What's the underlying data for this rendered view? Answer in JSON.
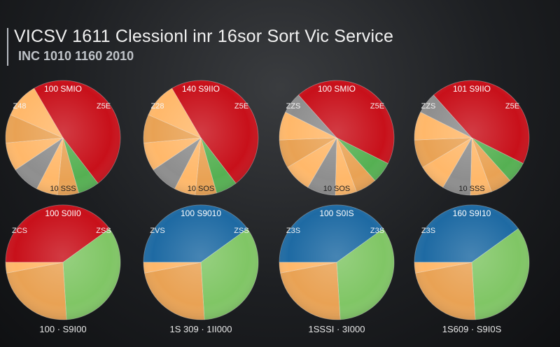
{
  "header": {
    "title": "VICSV 1611 Clessionl inr 16sor Sort Vic Service",
    "subtitle": "INC 1010 1160 2010"
  },
  "colors": {
    "red": "#c8101a",
    "green": "#3f9a3c",
    "orange": "#e9a254",
    "grey": "#8e8e8e",
    "blue": "#1e6aa3",
    "lightgreen": "#6ab04f"
  },
  "chart_data": [
    {
      "type": "pie",
      "top_label": "100 SMIO",
      "left_label": "Z48",
      "right_label": "Z5E",
      "bottom_label": "10 SSS",
      "slices": [
        {
          "value": 48,
          "color": "#c8101a"
        },
        {
          "value": 6,
          "color": "#3f9a3c"
        },
        {
          "value": 6,
          "color": "#e9a254"
        },
        {
          "value": 6,
          "color": "#e9a254"
        },
        {
          "value": 8,
          "color": "#8e8e8e"
        },
        {
          "value": 8,
          "color": "#e9a254"
        },
        {
          "value": 8,
          "color": "#e9a254"
        },
        {
          "value": 10,
          "color": "#e9a254"
        }
      ]
    },
    {
      "type": "pie",
      "top_label": "140 S9IIO",
      "left_label": "Z28",
      "right_label": "Z5E",
      "bottom_label": "10 SOS",
      "slices": [
        {
          "value": 48,
          "color": "#c8101a"
        },
        {
          "value": 6,
          "color": "#3f9a3c"
        },
        {
          "value": 6,
          "color": "#e9a254"
        },
        {
          "value": 6,
          "color": "#e9a254"
        },
        {
          "value": 8,
          "color": "#8e8e8e"
        },
        {
          "value": 8,
          "color": "#e9a254"
        },
        {
          "value": 8,
          "color": "#e9a254"
        },
        {
          "value": 10,
          "color": "#e9a254"
        }
      ]
    },
    {
      "type": "pie",
      "top_label": "100 SMIO",
      "left_label": "ZZS",
      "right_label": "Z5E",
      "bottom_label": "10 SOS",
      "slices": [
        {
          "value": 44,
          "color": "#c8101a"
        },
        {
          "value": 6,
          "color": "#3f9a3c"
        },
        {
          "value": 6,
          "color": "#e9a254"
        },
        {
          "value": 6,
          "color": "#e9a254"
        },
        {
          "value": 8,
          "color": "#8e8e8e"
        },
        {
          "value": 8,
          "color": "#e9a254"
        },
        {
          "value": 8,
          "color": "#e9a254"
        },
        {
          "value": 8,
          "color": "#e9a254"
        },
        {
          "value": 6,
          "color": "#8e8e8e"
        }
      ]
    },
    {
      "type": "pie",
      "top_label": "101 S9IIO",
      "left_label": "ZZS",
      "right_label": "Z5E",
      "bottom_label": "10 SSS",
      "slices": [
        {
          "value": 44,
          "color": "#c8101a"
        },
        {
          "value": 6,
          "color": "#3f9a3c"
        },
        {
          "value": 6,
          "color": "#e9a254"
        },
        {
          "value": 6,
          "color": "#e9a254"
        },
        {
          "value": 8,
          "color": "#8e8e8e"
        },
        {
          "value": 8,
          "color": "#e9a254"
        },
        {
          "value": 8,
          "color": "#e9a254"
        },
        {
          "value": 8,
          "color": "#e9a254"
        },
        {
          "value": 6,
          "color": "#8e8e8e"
        }
      ]
    },
    {
      "type": "pie",
      "top_label": "100 S0II0",
      "left_label": "ZCS",
      "right_label": "ZSS",
      "bottom_label": "100 · S9I00",
      "slices": [
        {
          "value": 40,
          "color": "#c8101a"
        },
        {
          "value": 34,
          "color": "#6ab04f"
        },
        {
          "value": 23,
          "color": "#e9a254"
        },
        {
          "value": 3,
          "color": "#e9a254"
        }
      ]
    },
    {
      "type": "pie",
      "top_label": "100 S9010",
      "left_label": "ZVS",
      "right_label": "ZSS",
      "bottom_label": "1S 309 · 1II000",
      "slices": [
        {
          "value": 40,
          "color": "#1e6aa3"
        },
        {
          "value": 34,
          "color": "#6ab04f"
        },
        {
          "value": 23,
          "color": "#e9a254"
        },
        {
          "value": 3,
          "color": "#e9a254"
        }
      ]
    },
    {
      "type": "pie",
      "top_label": "100 S0IS",
      "left_label": "Z3S",
      "right_label": "Z3S",
      "bottom_label": "1SSSI · 3I000",
      "slices": [
        {
          "value": 40,
          "color": "#1e6aa3"
        },
        {
          "value": 34,
          "color": "#6ab04f"
        },
        {
          "value": 23,
          "color": "#e9a254"
        },
        {
          "value": 3,
          "color": "#e9a254"
        }
      ]
    },
    {
      "type": "pie",
      "top_label": "160 S9I10",
      "left_label": "Z3S",
      "right_label": "",
      "bottom_label": "1S609 · S9I0S",
      "slices": [
        {
          "value": 40,
          "color": "#1e6aa3"
        },
        {
          "value": 34,
          "color": "#6ab04f"
        },
        {
          "value": 23,
          "color": "#e9a254"
        },
        {
          "value": 3,
          "color": "#e9a254"
        }
      ]
    }
  ]
}
